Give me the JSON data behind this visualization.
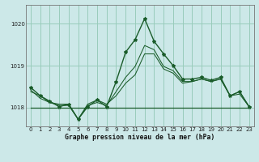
{
  "title": "Graphe pression niveau de la mer (hPa)",
  "bg_color": "#cce8e8",
  "grid_color": "#99ccbb",
  "line_color": "#1a5c2a",
  "marker_color": "#1a5c2a",
  "xlim": [
    -0.5,
    23.5
  ],
  "ylim": [
    1017.55,
    1020.45
  ],
  "yticks": [
    1018,
    1019,
    1020
  ],
  "xticks": [
    0,
    1,
    2,
    3,
    4,
    5,
    6,
    7,
    8,
    9,
    10,
    11,
    12,
    13,
    14,
    15,
    16,
    17,
    18,
    19,
    20,
    21,
    22,
    23
  ],
  "series1": [
    1018.48,
    1018.28,
    1018.15,
    1018.02,
    1018.08,
    1017.72,
    1018.02,
    1018.18,
    1018.02,
    1018.62,
    1019.32,
    1019.62,
    1020.12,
    1019.58,
    1019.28,
    1019.0,
    1018.68,
    1018.68,
    1018.72,
    1018.65,
    1018.72,
    1018.28,
    1018.38,
    1018.02
  ],
  "series2": [
    1018.42,
    1018.22,
    1018.12,
    1018.05,
    1018.05,
    1017.72,
    1018.05,
    1018.12,
    1018.05,
    1018.38,
    1018.72,
    1018.98,
    1019.48,
    1019.38,
    1018.98,
    1018.88,
    1018.62,
    1018.62,
    1018.68,
    1018.62,
    1018.68,
    1018.28,
    1018.32,
    1018.02
  ],
  "series3": [
    1018.38,
    1018.28,
    1018.12,
    1018.08,
    1018.08,
    1017.72,
    1018.08,
    1018.18,
    1018.08,
    1018.28,
    1018.58,
    1018.78,
    1019.28,
    1019.28,
    1018.92,
    1018.82,
    1018.58,
    1018.62,
    1018.68,
    1018.62,
    1018.68,
    1018.28,
    1018.38,
    1018.02
  ],
  "flat_line": [
    1018.0,
    1018.0,
    1018.0,
    1018.0,
    1018.0,
    1018.0,
    1018.0,
    1018.0,
    1018.0,
    1018.0,
    1018.0,
    1018.0,
    1018.0,
    1018.0,
    1018.0,
    1018.0,
    1018.0,
    1018.0,
    1018.0,
    1018.0,
    1018.0,
    1018.0,
    1018.0,
    1018.0
  ],
  "xlabel_fontsize": 5.8,
  "tick_fontsize": 5.0,
  "figsize": [
    3.2,
    2.0
  ],
  "dpi": 100
}
